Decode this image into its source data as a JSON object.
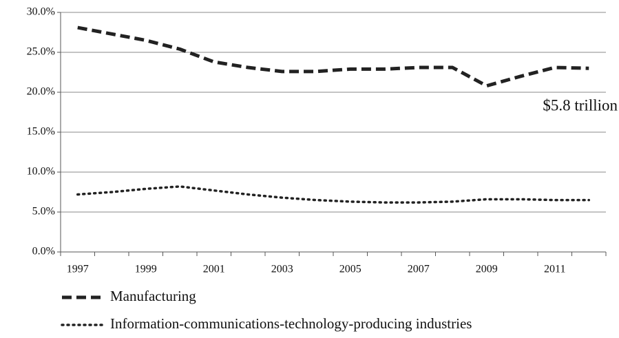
{
  "chart_data": {
    "type": "line",
    "categories": [
      "1997",
      null,
      "1999",
      null,
      "2001",
      null,
      "2003",
      null,
      "2005",
      null,
      "2007",
      null,
      "2009",
      null,
      "2011",
      null
    ],
    "series": [
      {
        "name": "Manufacturing",
        "color": "#222222",
        "dash": "dashed",
        "values": [
          28.1,
          27.3,
          26.5,
          25.4,
          23.8,
          23.1,
          22.6,
          22.6,
          22.9,
          22.9,
          23.1,
          23.1,
          20.8,
          22.0,
          23.1,
          23.0
        ]
      },
      {
        "name": "Information-communications-technology-producing industries",
        "color": "#222222",
        "dash": "dotted",
        "values": [
          7.2,
          7.5,
          7.9,
          8.2,
          7.7,
          7.2,
          6.8,
          6.5,
          6.3,
          6.2,
          6.2,
          6.3,
          6.6,
          6.6,
          6.5,
          6.5
        ]
      }
    ],
    "ylim": [
      0,
      30
    ],
    "yticks": [
      {
        "value": 0,
        "label": "0.0%"
      },
      {
        "value": 5,
        "label": "5.0%"
      },
      {
        "value": 10,
        "label": "10.0%"
      },
      {
        "value": 15,
        "label": "15.0%"
      },
      {
        "value": 20,
        "label": "20.0%"
      },
      {
        "value": 25,
        "label": "25.0%"
      },
      {
        "value": 30,
        "label": "30.0%"
      }
    ],
    "grid": true,
    "annotations": [
      "$5.8 trillion"
    ]
  }
}
